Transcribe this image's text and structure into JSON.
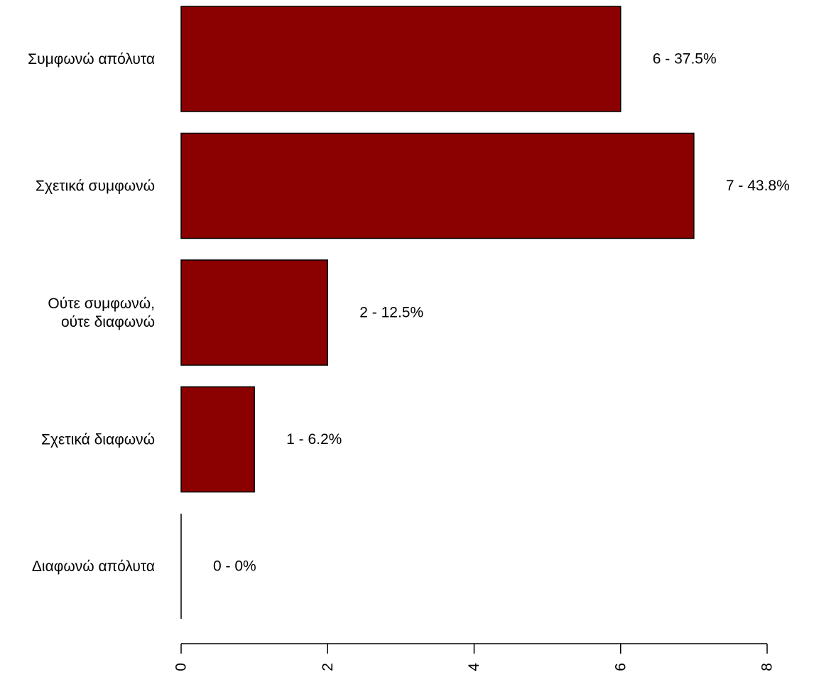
{
  "chart_data": {
    "type": "bar",
    "orientation": "horizontal",
    "categories": [
      [
        "Συμφωνώ απόλυτα"
      ],
      [
        "Σχετικά συμφωνώ"
      ],
      [
        "Ούτε συμφωνώ,",
        "ούτε διαφωνώ"
      ],
      [
        "Σχετικά διαφωνώ"
      ],
      [
        "Διαφωνώ απόλυτα"
      ]
    ],
    "values": [
      6,
      7,
      2,
      1,
      0
    ],
    "value_labels": [
      "6 - 37.5%",
      "7 - 43.8%",
      "2 - 12.5%",
      "1 - 6.2%",
      "0 - 0%"
    ],
    "xlim": [
      0,
      8
    ],
    "x_ticks": [
      0,
      2,
      4,
      6,
      8
    ],
    "x_tick_labels": [
      "0",
      "2",
      "4",
      "6",
      "8"
    ],
    "tick_label_orientation": "rotated-vertical",
    "title": "",
    "xlabel": "",
    "ylabel": "",
    "grid": false,
    "legend": "none",
    "bar_color": "#8B0000",
    "border_color": "#000000"
  }
}
